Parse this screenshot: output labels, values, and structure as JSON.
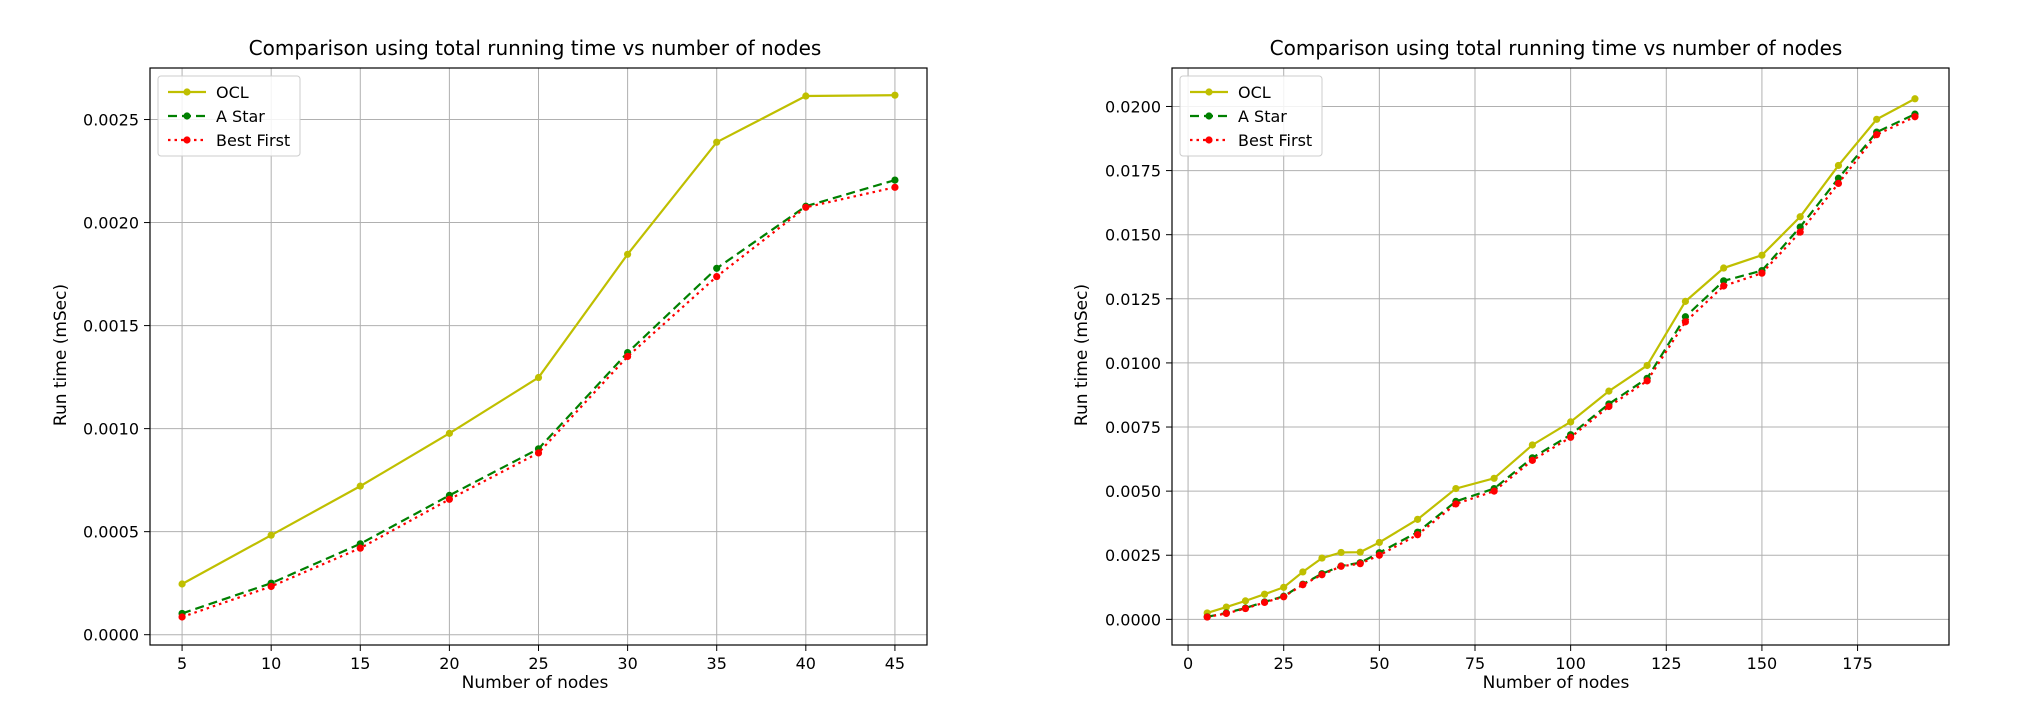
{
  "chart_data": [
    {
      "type": "line",
      "title": "Comparison using total running time vs number of nodes",
      "xlabel": "Number of nodes",
      "ylabel": "Run time (mSec)",
      "xlim": [
        3.2,
        46.8
      ],
      "ylim": [
        -5e-05,
        0.00275
      ],
      "xticks": [
        5,
        10,
        15,
        20,
        25,
        30,
        35,
        40,
        45
      ],
      "xtick_labels": [
        "5",
        "10",
        "15",
        "20",
        "25",
        "30",
        "35",
        "40",
        "45"
      ],
      "yticks": [
        0,
        0.0005,
        0.001,
        0.0015,
        0.002,
        0.0025
      ],
      "ytick_labels": [
        "0.0000",
        "0.0005",
        "0.0010",
        "0.0015",
        "0.0020",
        "0.0025"
      ],
      "grid": true,
      "legend_position": "top-left",
      "x": [
        5,
        10,
        15,
        20,
        25,
        30,
        35,
        40,
        45
      ],
      "series": [
        {
          "name": "OCL",
          "color": "#bfbf00",
          "linestyle": "solid",
          "marker": "dot",
          "values": [
            0.000246,
            0.000483,
            0.000721,
            0.000977,
            0.001248,
            0.001846,
            0.00239,
            0.002614,
            0.002618
          ]
        },
        {
          "name": "A Star",
          "color": "#008000",
          "linestyle": "dashed",
          "marker": "dot",
          "values": [
            0.000103,
            0.00025,
            0.000441,
            0.000676,
            0.000902,
            0.001369,
            0.001778,
            0.002079,
            0.002206
          ]
        },
        {
          "name": "Best First",
          "color": "#ff0000",
          "linestyle": "dotted",
          "marker": "dot",
          "values": [
            8.6e-05,
            0.000234,
            0.00042,
            0.000657,
            0.000882,
            0.00135,
            0.001738,
            0.002074,
            0.002171
          ]
        }
      ]
    },
    {
      "type": "line",
      "title": "Comparison using total running time vs number of nodes",
      "xlabel": "Number of nodes",
      "ylabel": "Run time (mSec)",
      "xlim": [
        -4.2,
        198.9
      ],
      "ylim": [
        -0.001,
        0.0215
      ],
      "xticks": [
        0,
        25,
        50,
        75,
        100,
        125,
        150,
        175
      ],
      "xtick_labels": [
        "0",
        "25",
        "50",
        "75",
        "100",
        "125",
        "150",
        "175"
      ],
      "yticks": [
        0,
        0.0025,
        0.005,
        0.0075,
        0.01,
        0.0125,
        0.015,
        0.0175,
        0.02
      ],
      "ytick_labels": [
        "0.0000",
        "0.0025",
        "0.0050",
        "0.0075",
        "0.0100",
        "0.0125",
        "0.0150",
        "0.0175",
        "0.0200"
      ],
      "grid": true,
      "legend_position": "top-left",
      "x": [
        5,
        10,
        15,
        20,
        25,
        30,
        35,
        40,
        45,
        50,
        60,
        70,
        80,
        90,
        100,
        110,
        120,
        130,
        140,
        150,
        160,
        170,
        180,
        190
      ],
      "series": [
        {
          "name": "OCL",
          "color": "#bfbf00",
          "linestyle": "solid",
          "marker": "dot",
          "values": [
            0.00025,
            0.00048,
            0.00072,
            0.00098,
            0.00125,
            0.00185,
            0.00239,
            0.00261,
            0.00262,
            0.003,
            0.0039,
            0.0051,
            0.0055,
            0.0068,
            0.0077,
            0.0089,
            0.0099,
            0.0124,
            0.0137,
            0.0142,
            0.0157,
            0.0177,
            0.0195,
            0.0203
          ]
        },
        {
          "name": "A Star",
          "color": "#008000",
          "linestyle": "dashed",
          "marker": "dot",
          "values": [
            0.0001,
            0.00025,
            0.00044,
            0.00068,
            0.0009,
            0.00137,
            0.00178,
            0.00208,
            0.00221,
            0.0026,
            0.0034,
            0.0046,
            0.0051,
            0.0063,
            0.0072,
            0.0084,
            0.0094,
            0.0118,
            0.0132,
            0.0136,
            0.0153,
            0.0172,
            0.019,
            0.0197
          ]
        },
        {
          "name": "Best First",
          "color": "#ff0000",
          "linestyle": "dotted",
          "marker": "dot",
          "values": [
            9e-05,
            0.00023,
            0.00042,
            0.00066,
            0.00088,
            0.00135,
            0.00174,
            0.00207,
            0.00217,
            0.0025,
            0.0033,
            0.0045,
            0.005,
            0.0062,
            0.0071,
            0.0083,
            0.0093,
            0.0116,
            0.013,
            0.0135,
            0.0151,
            0.017,
            0.0189,
            0.0196
          ]
        }
      ]
    }
  ]
}
